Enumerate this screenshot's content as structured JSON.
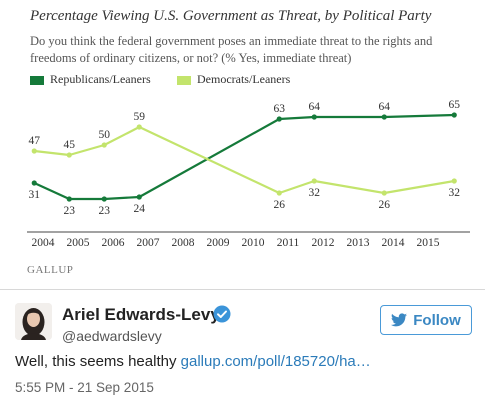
{
  "chart_data": {
    "type": "line",
    "title": "Percentage Viewing U.S. Government as Threat, by Political Party",
    "subtitle": "Do you think the federal government poses an immediate threat to the rights and freedoms of ordinary citizens, or not? (% Yes, immediate threat)",
    "xlabel": "",
    "ylabel": "",
    "x_ticks": [
      "2004",
      "2005",
      "2006",
      "2007",
      "2008",
      "2009",
      "2010",
      "2011",
      "2012",
      "2013",
      "2014",
      "2015"
    ],
    "ylim": [
      15,
      70
    ],
    "grid": false,
    "legend_position": "top-left",
    "series": [
      {
        "name": "Republicans/Leaners",
        "color": "#157a3a",
        "points": [
          {
            "x": 2003.75,
            "y": 31,
            "label": "31"
          },
          {
            "x": 2004.75,
            "y": 23,
            "label": "23"
          },
          {
            "x": 2005.75,
            "y": 23,
            "label": "23"
          },
          {
            "x": 2006.75,
            "y": 24,
            "label": "24"
          },
          {
            "x": 2010.75,
            "y": 63,
            "label": "63"
          },
          {
            "x": 2011.75,
            "y": 64,
            "label": "64"
          },
          {
            "x": 2013.75,
            "y": 64,
            "label": "64"
          },
          {
            "x": 2015.75,
            "y": 65,
            "label": "65"
          }
        ]
      },
      {
        "name": "Democrats/Leaners",
        "color": "#c3e46c",
        "points": [
          {
            "x": 2003.75,
            "y": 47,
            "label": "47"
          },
          {
            "x": 2004.75,
            "y": 45,
            "label": "45"
          },
          {
            "x": 2005.75,
            "y": 50,
            "label": "50"
          },
          {
            "x": 2006.75,
            "y": 59,
            "label": "59"
          },
          {
            "x": 2010.75,
            "y": 26,
            "label": "26"
          },
          {
            "x": 2011.75,
            "y": 32,
            "label": "32"
          },
          {
            "x": 2013.75,
            "y": 26,
            "label": "26"
          },
          {
            "x": 2015.75,
            "y": 32,
            "label": "32"
          }
        ]
      }
    ]
  },
  "brand": "GALLUP",
  "tweet": {
    "author_name": "Ariel Edwards-Levy",
    "handle": "@aedwardslevy",
    "follow_label": "Follow",
    "text": "Well, this seems healthy",
    "link_text": "gallup.com/poll/185720/ha…",
    "timestamp": "5:55 PM - 21 Sep 2015",
    "accent_color": "#3b88c3",
    "icons": [
      "verified-badge-icon",
      "twitter-bird-icon"
    ]
  }
}
